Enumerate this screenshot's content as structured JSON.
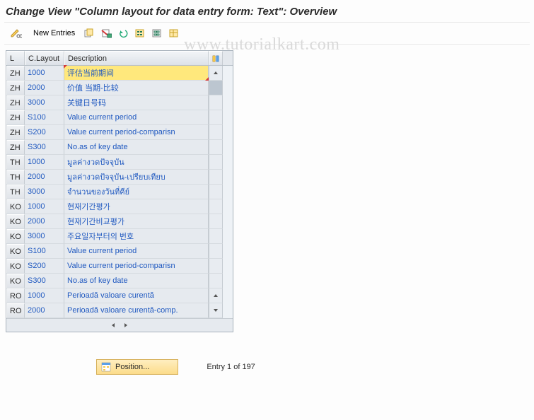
{
  "title": "Change View \"Column layout for data entry form: Text\": Overview",
  "watermark": "www.tutorialkart.com",
  "toolbar": {
    "new_entries_label": "New Entries"
  },
  "grid": {
    "headers": {
      "lang": "L",
      "layout": "C.Layout",
      "desc": "Description"
    },
    "rows": [
      {
        "l": "ZH",
        "layout": "1000",
        "desc": "评估当前期间",
        "selected": true
      },
      {
        "l": "ZH",
        "layout": "2000",
        "desc": "价值 当期-比较"
      },
      {
        "l": "ZH",
        "layout": "3000",
        "desc": "关键日号码"
      },
      {
        "l": "ZH",
        "layout": "S100",
        "desc": "Value current period"
      },
      {
        "l": "ZH",
        "layout": "S200",
        "desc": "Value current period-comparisn"
      },
      {
        "l": "ZH",
        "layout": "S300",
        "desc": "No.as of key date"
      },
      {
        "l": "TH",
        "layout": "1000",
        "desc": "มูลค่างวดปัจจุบัน"
      },
      {
        "l": "TH",
        "layout": "2000",
        "desc": "มูลค่างวดปัจจุบัน-เปรียบเทียบ"
      },
      {
        "l": "TH",
        "layout": "3000",
        "desc": "จำนวนของวันที่คีย์"
      },
      {
        "l": "KO",
        "layout": "1000",
        "desc": "현재기간평가"
      },
      {
        "l": "KO",
        "layout": "2000",
        "desc": "현재기간비교평가"
      },
      {
        "l": "KO",
        "layout": "3000",
        "desc": "주요일자부터의 번호"
      },
      {
        "l": "KO",
        "layout": "S100",
        "desc": "Value current period"
      },
      {
        "l": "KO",
        "layout": "S200",
        "desc": "Value current period-comparisn"
      },
      {
        "l": "KO",
        "layout": "S300",
        "desc": "No.as of key date"
      },
      {
        "l": "RO",
        "layout": "1000",
        "desc": "Perioadă valoare curentă"
      },
      {
        "l": "RO",
        "layout": "2000",
        "desc": "Perioadă valoare curentă-comp."
      }
    ]
  },
  "footer": {
    "position_label": "Position...",
    "entry_label": "Entry 1 of 197"
  },
  "colors": {
    "accent_blue": "#2059c0",
    "header_bg": "#e4e8ed",
    "row_bg": "#e6eaef",
    "highlight_bg": "#ffe87c",
    "highlight_corner": "#d43a3a",
    "button_gold_top": "#feeec0",
    "button_gold_bottom": "#fcdc8a",
    "border_gray": "#c6ccd2"
  }
}
